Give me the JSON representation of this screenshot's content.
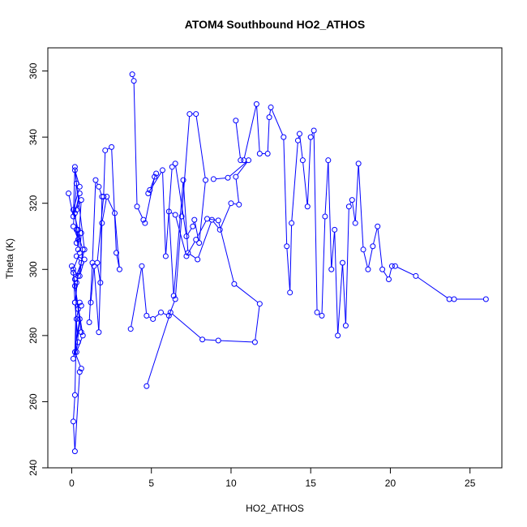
{
  "chart_data": {
    "type": "line",
    "title": "ATOM4 Southbound HO2_ATHOS",
    "xlabel": "HO2_ATHOS",
    "ylabel": "Theta (K)",
    "xlim": [
      -1.5,
      27.0
    ],
    "ylim": [
      240,
      367
    ],
    "x_ticks": [
      0,
      5,
      10,
      15,
      20,
      25
    ],
    "y_ticks": [
      240,
      260,
      280,
      300,
      320,
      340,
      360
    ],
    "series_color": "#0000ff",
    "markers": "open-circle",
    "grid": false,
    "series": [
      {
        "x": [
          -0.2,
          0.1,
          0.2,
          0.3,
          0.1,
          0.4,
          0.2,
          0.5,
          0.3,
          0.6,
          0.4,
          0.3,
          0.7,
          0.5,
          0.8,
          0.3,
          0.6,
          0.2,
          0.1,
          0.4,
          0.6,
          0.2,
          0.7,
          0.3,
          0.5,
          0.1,
          0.4,
          0.2,
          0.6,
          0.5,
          0.3,
          0.2,
          0.1,
          0.2,
          0.5,
          0.6,
          0.2,
          0.3,
          0.8,
          0.2,
          0.5,
          0.1,
          0.4,
          0.3,
          0.6,
          0.5,
          0.1,
          0.2,
          0.4,
          0.0
        ],
        "y": [
          323,
          316,
          331,
          326,
          313,
          309,
          317,
          323,
          318,
          321,
          306,
          312,
          306,
          298,
          303,
          304,
          302,
          297,
          299,
          288,
          281,
          295,
          280,
          275,
          285,
          273,
          278,
          290,
          289,
          290,
          285,
          262,
          254,
          245,
          269,
          270,
          275,
          296,
          306,
          330,
          325,
          318,
          312,
          308,
          311,
          305,
          300,
          290,
          298,
          301
        ]
      },
      {
        "x": [
          1.1,
          1.3,
          1.5,
          1.7,
          1.9,
          1.8,
          1.6,
          2.0,
          2.1,
          2.5,
          2.8,
          3.0,
          2.7,
          2.2,
          1.9,
          1.7,
          1.4,
          1.2
        ],
        "y": [
          284,
          302,
          327,
          325,
          322,
          296,
          302,
          322,
          336,
          337,
          305,
          300,
          317,
          322,
          314,
          281,
          301,
          290
        ]
      },
      {
        "x": [
          3.8,
          3.9,
          4.1,
          4.5,
          4.6,
          5.2,
          5.3,
          4.9,
          4.8,
          5.7,
          5.9,
          6.3,
          6.5,
          7.2,
          7.6,
          7.7,
          8.0,
          8.4,
          7.8,
          7.4,
          6.9,
          6.5,
          6.1,
          5.6,
          5.1,
          4.7,
          4.4,
          3.7
        ],
        "y": [
          359,
          357,
          319,
          315,
          314,
          328,
          329,
          324,
          323,
          330,
          304,
          331,
          332,
          310,
          313,
          315,
          308,
          327,
          347,
          347,
          316,
          291,
          286,
          287,
          285,
          286,
          301,
          282
        ]
      },
      {
        "x": [
          4.7,
          6.2,
          8.2,
          9.2,
          11.5,
          11.8,
          10.2,
          9.2,
          8.5,
          7.8,
          7.2,
          6.5,
          6.1,
          6.4,
          7.0,
          7.3,
          7.9,
          8.8,
          9.3,
          10.0,
          10.5,
          10.3,
          11.1,
          9.8,
          8.9
        ],
        "y": [
          264.7,
          287,
          278.8,
          278.5,
          278.0,
          289.6,
          295.6,
          314.8,
          315.3,
          309,
          304,
          316.5,
          317.5,
          292,
          327,
          305,
          303,
          315,
          312,
          320,
          319.6,
          328,
          333,
          327.7,
          327.3
        ]
      },
      {
        "x": [
          10.3,
          10.6,
          10.8,
          11.6,
          11.8,
          12.3,
          12.4,
          12.5,
          13.3,
          13.5,
          13.7,
          13.8,
          14.2,
          14.3,
          14.5,
          14.8,
          15.0,
          15.2,
          15.4,
          15.7,
          15.9,
          16.1,
          16.3,
          16.5,
          16.7,
          17.0,
          17.2,
          17.4,
          17.6,
          17.8,
          18.0,
          18.3,
          18.6,
          18.9,
          19.2,
          19.5,
          19.9,
          20.1,
          20.3,
          21.6,
          23.7,
          24.0,
          26.0
        ],
        "y": [
          345,
          333,
          333,
          350,
          335,
          335,
          346,
          349,
          340,
          307,
          293,
          314,
          339,
          341,
          333,
          319,
          340,
          342,
          287,
          286,
          316,
          333,
          300,
          312,
          280,
          302,
          283,
          319,
          321,
          314,
          332,
          306,
          300,
          307,
          313,
          300,
          297,
          301,
          301,
          298,
          291,
          291,
          291
        ]
      }
    ]
  }
}
